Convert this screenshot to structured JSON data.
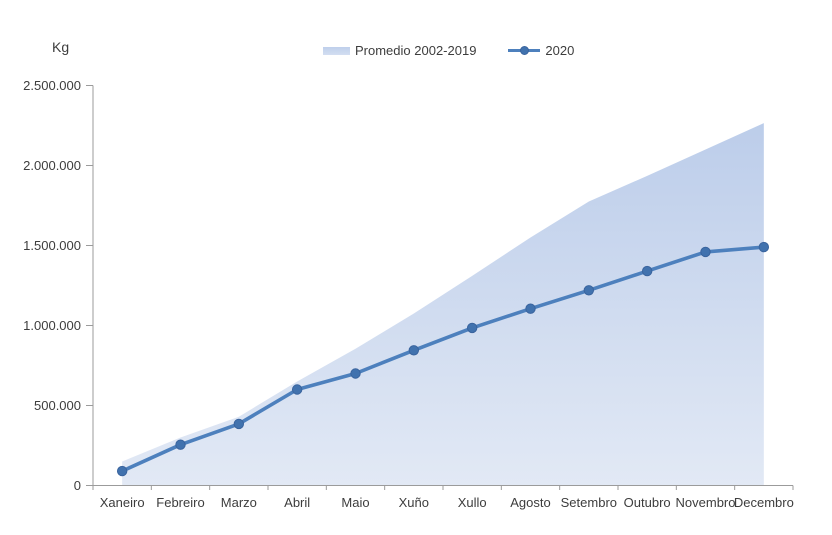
{
  "chart": {
    "y_axis_title": "Kg"
  },
  "chart_data": {
    "type": "area+line",
    "categories": [
      "Xaneiro",
      "Febreiro",
      "Marzo",
      "Abril",
      "Maio",
      "Xuño",
      "Xullo",
      "Agosto",
      "Setembro",
      "Outubro",
      "Novembro",
      "Decembro"
    ],
    "series": [
      {
        "name": "Promedio 2002-2019",
        "type": "area",
        "values": [
          150000,
          300000,
          430000,
          650000,
          855000,
          1075000,
          1310000,
          1550000,
          1775000,
          1935000,
          2100000,
          2265000
        ]
      },
      {
        "name": "2020",
        "type": "line",
        "values": [
          90000,
          255000,
          385000,
          600000,
          700000,
          845000,
          985000,
          1105000,
          1220000,
          1340000,
          1460000,
          1490000
        ]
      }
    ],
    "title": "",
    "xlabel": "",
    "ylabel": "Kg",
    "ylim": [
      0,
      2500000
    ],
    "y_ticks": [
      0,
      500000,
      1000000,
      1500000,
      2000000,
      2500000
    ],
    "y_tick_labels": [
      "0",
      "500.000",
      "1.000.000",
      "1.500.000",
      "2.000.000",
      "2.500.000"
    ],
    "legend_position": "top-center",
    "grid": false,
    "colors": {
      "area_fill_top": "#bccdea",
      "area_fill_bottom": "#e2e9f5",
      "line": "#4d80bd",
      "marker_fill": "#4172ae",
      "marker_stroke": "#3a649e",
      "axis": "#9b9b9b",
      "tick_text": "#3d3d3d"
    }
  }
}
